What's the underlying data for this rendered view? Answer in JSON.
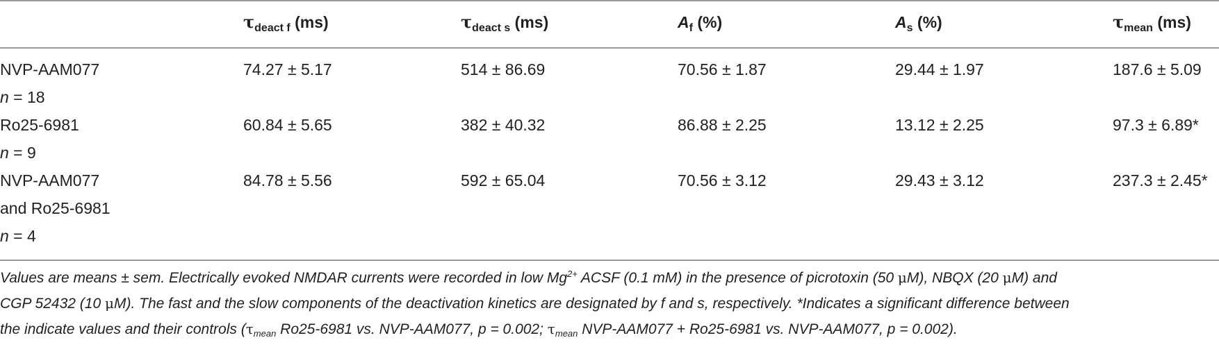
{
  "table": {
    "headers": {
      "tau_deact_f": {
        "symbol": "τ",
        "sub": "deact f",
        "unit": " (ms)"
      },
      "tau_deact_s": {
        "symbol": "τ",
        "sub": "deact s",
        "unit": " (ms)"
      },
      "a_f": {
        "symbol": "A",
        "sub": "f",
        "unit": " (%)"
      },
      "a_s": {
        "symbol": "A",
        "sub": "s",
        "unit": " (%)"
      },
      "tau_mean": {
        "symbol": "τ",
        "sub": "mean",
        "unit": " (ms)"
      }
    },
    "rows": [
      {
        "label_lines": [
          "NVP-AAM077"
        ],
        "n_prefix": "n",
        "n_value": " = 18",
        "tau_f": "74.27 ± 5.17",
        "tau_s": "514 ± 86.69",
        "a_f": "70.56 ± 1.87",
        "a_s": "29.44 ± 1.97",
        "tau_mean": "187.6 ± 5.09"
      },
      {
        "label_lines": [
          "Ro25-6981"
        ],
        "n_prefix": "n",
        "n_value": " = 9",
        "tau_f": "60.84 ± 5.65",
        "tau_s": "382 ± 40.32",
        "a_f": "86.88 ± 2.25",
        "a_s": "13.12 ± 2.25",
        "tau_mean": "97.3 ± 6.89*"
      },
      {
        "label_lines": [
          "NVP-AAM077",
          "and Ro25-6981"
        ],
        "n_prefix": "n",
        "n_value": " = 4",
        "tau_f": "84.78 ± 5.56",
        "tau_s": "592 ± 65.04",
        "a_f": "70.56 ± 3.12",
        "a_s": "29.43 ± 3.12",
        "tau_mean": "237.3 ± 2.45*"
      }
    ]
  },
  "footnote": {
    "l1_a": "Values are means ± sem. Electrically evoked NMDAR currents were recorded in low Mg",
    "l1_sup": "2+",
    "l1_b": " ACSF (0.1 mM) in the presence of picrotoxin (50 ",
    "mu": "μ",
    "l1_c": "M), NBQX (20 ",
    "l1_d": "M) and",
    "l2_a": "CGP 52432 (10 ",
    "l2_b": "M). The fast and the slow components of the deactivation kinetics are designated by f and s, respectively. *Indicates a significant difference between",
    "l3_a": "the indicate values and their controls (",
    "tau": "τ",
    "mean_sub": "mean",
    "l3_b": " Ro25-6981 vs. NVP-AAM077, p = 0.002; ",
    "l3_c": " NVP-AAM077 + Ro25-6981 vs. NVP-AAM077, p = 0.002)."
  }
}
